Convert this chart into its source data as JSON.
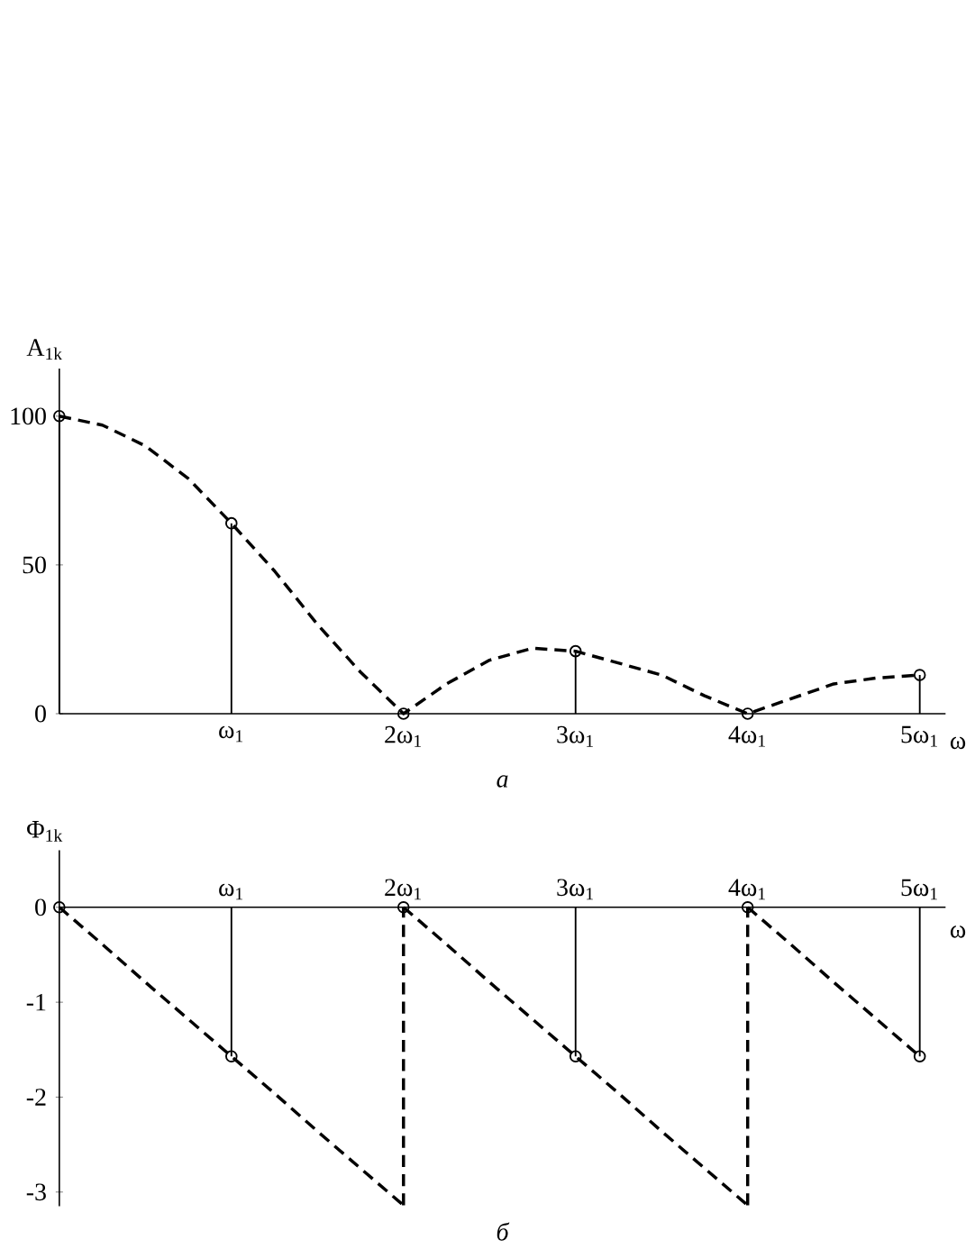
{
  "chart_data": [
    {
      "type": "line",
      "ylabel": "A$_{1k}$",
      "xlabel": "ω",
      "ylim": [
        0,
        116
      ],
      "categories": [
        null,
        null,
        null,
        null,
        "ω$_{1}$",
        null,
        null,
        null,
        "2ω$_{1}$",
        null,
        null,
        null,
        "3ω$_{1}$",
        null,
        null,
        null,
        "4ω$_{1}$",
        null,
        null,
        null,
        "5ω$_{1}$"
      ],
      "yticks": [
        0,
        50,
        100
      ],
      "series": [
        {
          "type": "lollipop",
          "color": "#000000",
          "marker": "circle",
          "values": [
            100,
            null,
            null,
            null,
            64,
            null,
            null,
            null,
            0,
            null,
            null,
            null,
            21,
            null,
            null,
            null,
            0,
            null,
            null,
            null,
            13
          ]
        },
        {
          "color": "#000000",
          "line_style": "dashed",
          "marker": "none",
          "values": [
            100,
            97,
            90,
            79,
            64,
            48,
            30,
            14,
            0,
            10,
            18,
            22,
            21,
            17,
            13,
            6,
            0,
            5,
            10,
            12,
            13
          ]
        }
      ],
      "annotations": [
        "а"
      ]
    },
    {
      "type": "line",
      "ylabel": "Φ$_{1k}$",
      "xlabel": "ω",
      "ylim": [
        -3.15,
        0.6
      ],
      "categories": [
        null,
        null,
        null,
        null,
        "ω$_{1}$",
        null,
        null,
        null,
        "2ω$_{1}$",
        null,
        null,
        null,
        "3ω$_{1}$",
        null,
        null,
        null,
        "4ω$_{1}$",
        null,
        null,
        null,
        "5ω$_{1}$"
      ],
      "yticks": [
        0,
        -1,
        -2,
        -3
      ],
      "series": [
        {
          "type": "lollipop",
          "color": "#000000",
          "marker": "circle",
          "values": [
            0,
            null,
            null,
            null,
            -1.57,
            null,
            null,
            null,
            0,
            null,
            null,
            null,
            -1.57,
            null,
            null,
            null,
            0,
            null,
            null,
            null,
            -1.57
          ]
        },
        {
          "color": "#000000",
          "line_style": "dashed",
          "marker": "none",
          "values": [
            0,
            -0.39,
            -0.79,
            -1.18,
            -1.57,
            -1.96,
            -2.36,
            -2.75,
            -3.14,
            null,
            null,
            null,
            null,
            null,
            null,
            null,
            null,
            null,
            null,
            null,
            null
          ]
        },
        {
          "color": "#000000",
          "line_style": "dashed",
          "marker": "none",
          "values": [
            null,
            null,
            null,
            null,
            null,
            null,
            null,
            null,
            0,
            -0.39,
            -0.79,
            -1.18,
            -1.57,
            -1.96,
            -2.36,
            -2.75,
            -3.14,
            null,
            null,
            null,
            null
          ]
        },
        {
          "color": "#000000",
          "line_style": "dashed",
          "marker": "none",
          "values": [
            null,
            null,
            null,
            null,
            null,
            null,
            null,
            null,
            null,
            null,
            null,
            null,
            null,
            null,
            null,
            null,
            0,
            -0.39,
            -0.79,
            -1.18,
            -1.57
          ]
        }
      ],
      "annotations": [
        "б"
      ]
    }
  ]
}
